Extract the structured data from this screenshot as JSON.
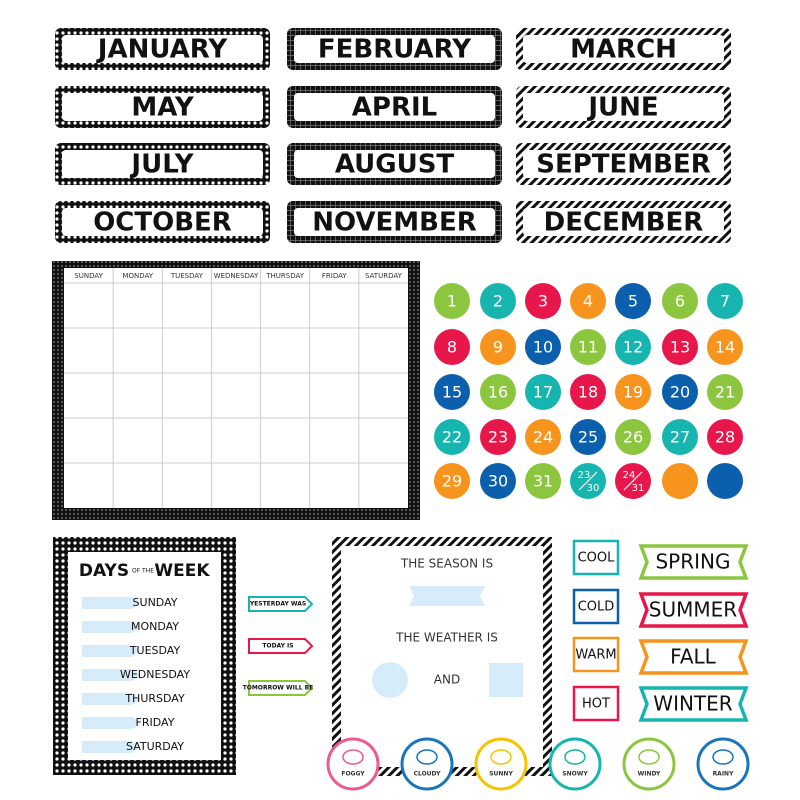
{
  "months": [
    "JANUARY",
    "FEBRUARY",
    "MARCH",
    "MAY",
    "APRIL",
    "JUNE",
    "JULY",
    "AUGUST",
    "SEPTEMBER",
    "OCTOBER",
    "NOVEMBER",
    "DECEMBER"
  ],
  "calendar": {
    "weekdays": [
      "SUNDAY",
      "MONDAY",
      "TUESDAY",
      "WEDNESDAY",
      "THURSDAY",
      "FRIDAY",
      "SATURDAY"
    ]
  },
  "number_circles": {
    "palette": [
      "#8cc63f",
      "#17b5b0",
      "#e8174b",
      "#f7941d",
      "#0b5fad"
    ],
    "labels": [
      "1",
      "2",
      "3",
      "4",
      "5",
      "6",
      "7",
      "8",
      "9",
      "10",
      "11",
      "12",
      "13",
      "14",
      "15",
      "16",
      "17",
      "18",
      "19",
      "20",
      "21",
      "22",
      "23",
      "24",
      "25",
      "26",
      "27",
      "28",
      "29",
      "30",
      "31",
      {
        "top": "23",
        "bottom": "30"
      },
      {
        "top": "24",
        "bottom": "31"
      },
      null,
      null
    ]
  },
  "days_card": {
    "title_left": "DAYS",
    "title_middle": "OF THE",
    "title_right": "WEEK",
    "days": [
      "SUNDAY",
      "MONDAY",
      "TUESDAY",
      "WEDNESDAY",
      "THURSDAY",
      "FRIDAY",
      "SATURDAY"
    ]
  },
  "strips": [
    {
      "label": "YESTERDAY WAS",
      "color": "#17b5b0"
    },
    {
      "label": "TODAY IS",
      "color": "#e8174b"
    },
    {
      "label": "TOMORROW WILL BE",
      "color": "#8cc63f"
    }
  ],
  "season_card": {
    "season_prompt": "THE SEASON IS",
    "weather_prompt": "THE WEATHER IS",
    "conjunction": "AND"
  },
  "temperatures": [
    {
      "label": "COOL",
      "color": "#17b5b0"
    },
    {
      "label": "COLD",
      "color": "#0b5fad"
    },
    {
      "label": "WARM",
      "color": "#f7941d"
    },
    {
      "label": "HOT",
      "color": "#e8174b"
    }
  ],
  "seasons": [
    {
      "label": "SPRING",
      "color": "#8cc63f"
    },
    {
      "label": "SUMMER",
      "color": "#e8174b"
    },
    {
      "label": "FALL",
      "color": "#f7941d"
    },
    {
      "label": "WINTER",
      "color": "#17b5b0"
    }
  ],
  "weather": [
    {
      "label": "FOGGY",
      "color": "#ee5a8f"
    },
    {
      "label": "CLOUDY",
      "color": "#1b75bb"
    },
    {
      "label": "SUNNY",
      "color": "#f2c500"
    },
    {
      "label": "SNOWY",
      "color": "#17b5b0"
    },
    {
      "label": "WINDY",
      "color": "#8cc63f"
    },
    {
      "label": "RAINY",
      "color": "#1b75bb"
    }
  ]
}
